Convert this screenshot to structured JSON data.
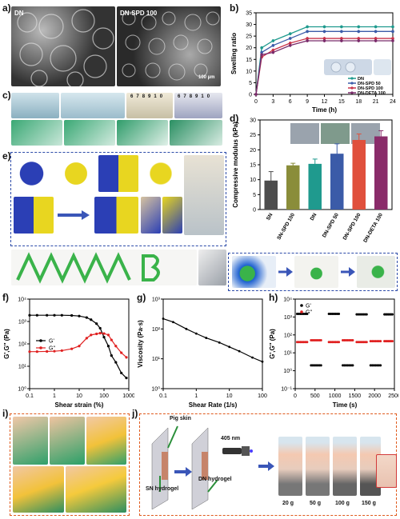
{
  "panels": {
    "a": {
      "letter": "a)",
      "labels": [
        "DN",
        "DN-SPD 100"
      ],
      "scalebar": "100 µm"
    },
    "b": {
      "letter": "b)"
    },
    "c": {
      "letter": "c)",
      "ruler_ticks": [
        "6",
        "7",
        "8",
        "9",
        "10",
        "6",
        "7",
        "8",
        "9",
        "10"
      ]
    },
    "d": {
      "letter": "d)"
    },
    "e": {
      "letter": "e)"
    },
    "f": {
      "letter": "f)"
    },
    "g": {
      "letter": "g)"
    },
    "h": {
      "letter": "h)"
    },
    "i": {
      "letter": "i)"
    },
    "j": {
      "letter": "j)",
      "pig_skin": "Pig skin",
      "sn_hydrogel": "SN hydrogel",
      "dn_hydrogel": "DN hydrogel",
      "wavelength": "405 nm",
      "weights": [
        "20 g",
        "50 g",
        "100 g",
        "150 g"
      ]
    }
  },
  "chart_data": [
    {
      "id": "b",
      "type": "line",
      "xlabel": "Time (h)",
      "ylabel": "Swelling ratio",
      "xlim": [
        0,
        24
      ],
      "ylim": [
        0,
        35
      ],
      "xticks": [
        0,
        3,
        6,
        9,
        12,
        15,
        18,
        21,
        24
      ],
      "yticks": [
        0,
        5,
        10,
        15,
        20,
        25,
        30,
        35
      ],
      "x": [
        0,
        1,
        3,
        6,
        9,
        12,
        15,
        18,
        21,
        24
      ],
      "series": [
        {
          "name": "DN",
          "color": "#1f9a8e",
          "values": [
            0,
            20,
            23,
            26,
            29,
            29,
            29,
            29,
            29,
            29
          ]
        },
        {
          "name": "DN-SPD 50",
          "color": "#3b5ba8",
          "values": [
            0,
            18,
            21,
            24,
            27,
            27,
            27,
            27,
            27,
            27
          ]
        },
        {
          "name": "DN-SPD 100",
          "color": "#c8334a",
          "values": [
            0,
            16,
            19,
            22,
            24,
            24,
            24,
            24,
            24,
            24
          ]
        },
        {
          "name": "DN-DETA 100",
          "color": "#7a2a6a",
          "values": [
            0,
            17,
            18,
            21,
            23,
            23,
            23,
            23,
            23,
            23
          ]
        }
      ],
      "legend": "bottom-right"
    },
    {
      "id": "d",
      "type": "bar",
      "ylabel": "Compressive modulus (kPa)",
      "ylim": [
        0,
        30
      ],
      "yticks": [
        0,
        5,
        10,
        15,
        20,
        25,
        30
      ],
      "categories": [
        "SN",
        "SN-SPD 100",
        "DN",
        "DN-SPD 50",
        "DN-SPD 100",
        "DN-DETA 100"
      ],
      "values": [
        9.7,
        14.8,
        15.3,
        18.7,
        23.3,
        24.5
      ],
      "errors": [
        3.0,
        0.7,
        1.6,
        3.3,
        2.0,
        1.9
      ],
      "colors": [
        "#4d4d4d",
        "#8a8d3a",
        "#1f9a8e",
        "#3b5ba8",
        "#e0503c",
        "#8a2c6a"
      ]
    },
    {
      "id": "f",
      "type": "line",
      "xlabel": "Shear strain (%)",
      "ylabel": "G',G'' (Pa)",
      "xscale": "log",
      "yscale": "log",
      "xlim": [
        0.1,
        1000
      ],
      "ylim": [
        1,
        10000
      ],
      "xticks": [
        "0.1",
        "1",
        "10",
        "100",
        "1000"
      ],
      "yticks": [
        "10⁰",
        "10¹",
        "10²",
        "10³",
        "10⁴"
      ],
      "x": [
        0.1,
        0.2,
        0.5,
        1,
        2,
        5,
        10,
        20,
        30,
        50,
        70,
        100,
        150,
        200,
        300,
        500,
        800
      ],
      "series": [
        {
          "name": "G'",
          "color": "#000000",
          "values": [
            1900,
            1900,
            1900,
            1900,
            1900,
            1850,
            1750,
            1500,
            1200,
            800,
            500,
            200,
            80,
            30,
            15,
            5,
            3
          ]
        },
        {
          "name": "G''",
          "color": "#e02020",
          "values": [
            45,
            45,
            46,
            47,
            50,
            60,
            80,
            180,
            250,
            280,
            300,
            290,
            250,
            150,
            80,
            40,
            25
          ]
        }
      ],
      "legend": "center-left"
    },
    {
      "id": "g",
      "type": "line",
      "xlabel": "Shear Rate (1/s)",
      "ylabel": "Viscosity (Pa·s)",
      "xscale": "log",
      "yscale": "log",
      "xlim": [
        0.1,
        100
      ],
      "ylim": [
        1,
        1000
      ],
      "xticks": [
        "0.1",
        "1",
        "10",
        "100"
      ],
      "yticks": [
        "10⁰",
        "10¹",
        "10²",
        "10³"
      ],
      "x": [
        0.1,
        0.2,
        0.5,
        1,
        2,
        5,
        10,
        20,
        50,
        100
      ],
      "series": [
        {
          "name": "",
          "color": "#000000",
          "values": [
            220,
            170,
            100,
            70,
            50,
            35,
            25,
            18,
            11,
            8
          ]
        }
      ]
    },
    {
      "id": "h",
      "type": "scatter",
      "xlabel": "Time (s)",
      "ylabel": "G',G'' (Pa)",
      "yscale": "log",
      "xlim": [
        0,
        2500
      ],
      "ylim": [
        0.1,
        10000
      ],
      "xticks": [
        "0",
        "500",
        "1000",
        "1500",
        "2000",
        "2500"
      ],
      "yticks": [
        "10⁻¹",
        "10⁰",
        "10¹",
        "10²",
        "10³",
        "10⁴"
      ],
      "segments": [
        {
          "x": [
            50,
            300
          ],
          "g1": 1500,
          "g2": 40
        },
        {
          "x": [
            400,
            650
          ],
          "g1": 2,
          "g2": 50
        },
        {
          "x": [
            850,
            1100
          ],
          "g1": 1500,
          "g2": 40
        },
        {
          "x": [
            1200,
            1450
          ],
          "g1": 2,
          "g2": 50
        },
        {
          "x": [
            1550,
            1800
          ],
          "g1": 1400,
          "g2": 40
        },
        {
          "x": [
            1900,
            2150
          ],
          "g1": 2,
          "g2": 45
        },
        {
          "x": [
            2250,
            2450
          ],
          "g1": 1400,
          "g2": 45
        }
      ],
      "series": [
        {
          "name": "G'",
          "color": "#000000"
        },
        {
          "name": "G''",
          "color": "#e02020"
        }
      ],
      "legend": "top-left"
    }
  ]
}
